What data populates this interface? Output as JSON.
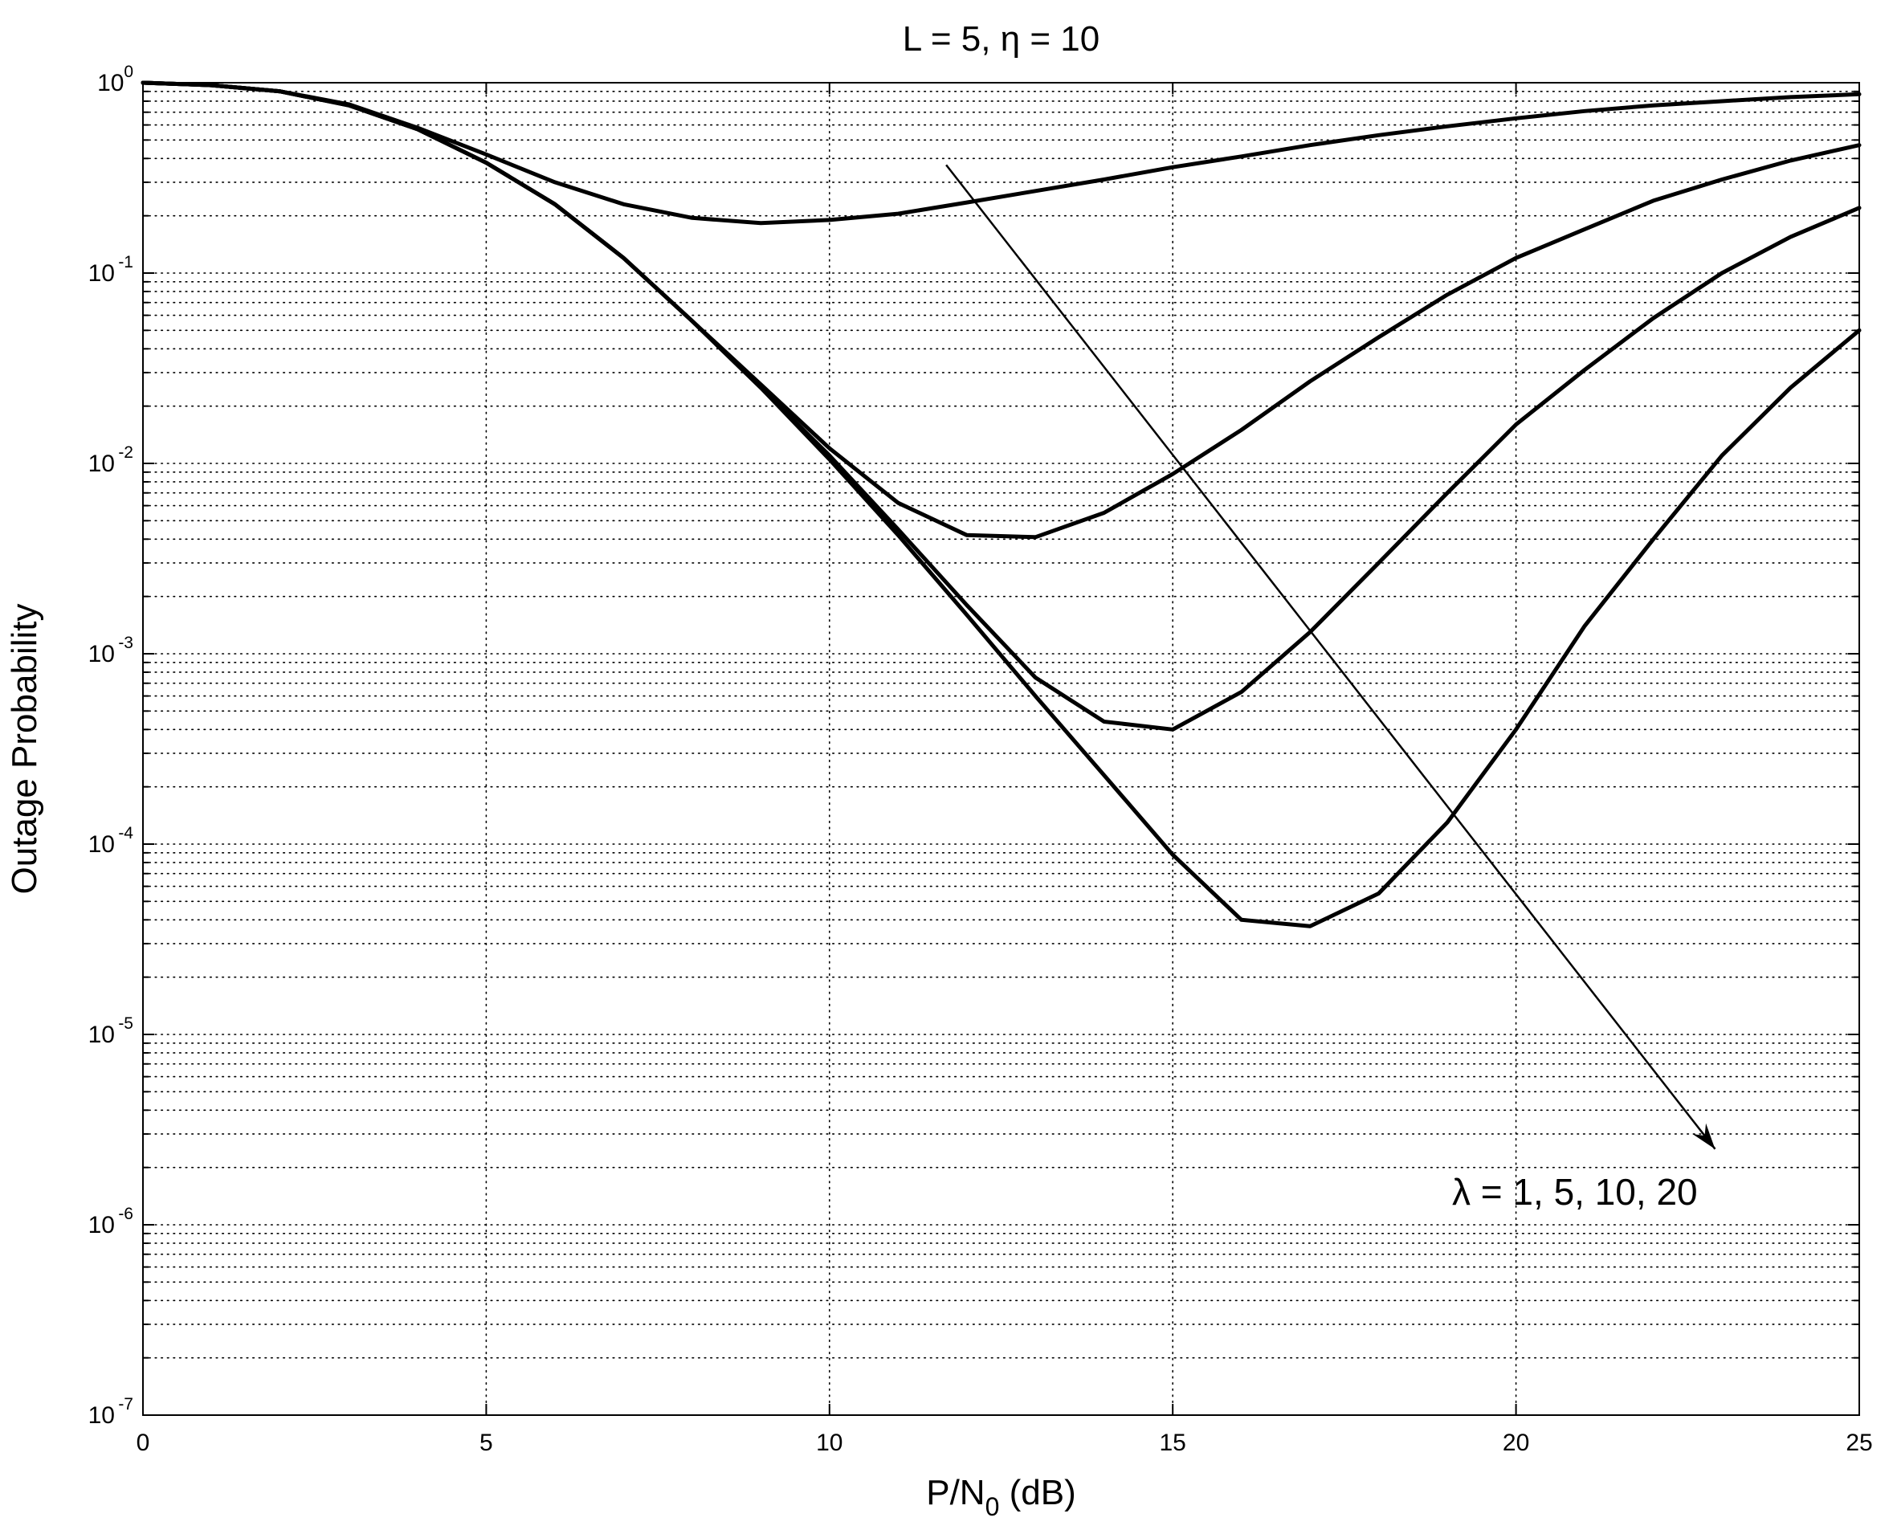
{
  "chart_data": {
    "type": "line",
    "title": "L = 5, η = 10",
    "xlabel": "P/N₀ (dB)",
    "xlabel_main": "P/N",
    "xlabel_sub": "0",
    "xlabel_tail": " (dB)",
    "ylabel": "Outage Probability",
    "xscale": "linear",
    "yscale": "log",
    "xlim": [
      0,
      25
    ],
    "ylim": [
      1e-07,
      1
    ],
    "grid": true,
    "x_ticks": [
      0,
      5,
      10,
      15,
      20,
      25
    ],
    "y_tick_exponents": [
      0,
      -1,
      -2,
      -3,
      -4,
      -5,
      -6,
      -7
    ],
    "y_tick_base": "10",
    "x": [
      0,
      1,
      2,
      3,
      4,
      5,
      6,
      7,
      8,
      9,
      10,
      11,
      12,
      13,
      14,
      15,
      16,
      17,
      18,
      19,
      20,
      21,
      22,
      23,
      24,
      25
    ],
    "series": [
      {
        "values": [
          1.0,
          0.97,
          0.9,
          0.77,
          0.58,
          0.42,
          0.3,
          0.23,
          0.195,
          0.183,
          0.19,
          0.205,
          0.235,
          0.27,
          0.31,
          0.36,
          0.41,
          0.47,
          0.53,
          0.59,
          0.65,
          0.71,
          0.76,
          0.8,
          0.84,
          0.87
        ]
      },
      {
        "values": [
          1.0,
          0.97,
          0.9,
          0.76,
          0.57,
          0.38,
          0.23,
          0.12,
          0.056,
          0.026,
          0.012,
          0.0062,
          0.0042,
          0.0041,
          0.0055,
          0.0088,
          0.015,
          0.027,
          0.046,
          0.077,
          0.12,
          0.17,
          0.24,
          0.31,
          0.39,
          0.47
        ]
      },
      {
        "values": [
          1.0,
          0.97,
          0.9,
          0.76,
          0.57,
          0.38,
          0.23,
          0.12,
          0.056,
          0.025,
          0.011,
          0.0045,
          0.0018,
          0.00075,
          0.00044,
          0.0004,
          0.00063,
          0.0013,
          0.003,
          0.007,
          0.016,
          0.031,
          0.058,
          0.1,
          0.155,
          0.22
        ]
      },
      {
        "values": [
          1.0,
          0.97,
          0.9,
          0.76,
          0.57,
          0.38,
          0.23,
          0.12,
          0.056,
          0.025,
          0.0105,
          0.0042,
          0.0016,
          0.0006,
          0.00023,
          8.8e-05,
          4e-05,
          3.7e-05,
          5.5e-05,
          0.00013,
          0.0004,
          0.0014,
          0.004,
          0.011,
          0.025,
          0.05
        ]
      }
    ],
    "annotation": {
      "text": "λ = 1, 5, 10, 20",
      "arrow_from": [
        11.7,
        0.37
      ],
      "arrow_to": [
        22.9,
        2.5e-06
      ]
    }
  }
}
